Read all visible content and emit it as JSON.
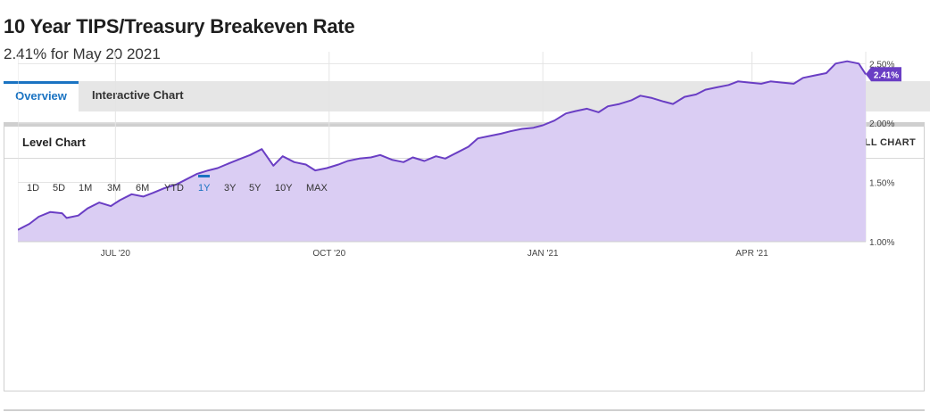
{
  "header": {
    "title": "10 Year TIPS/Treasury Breakeven Rate",
    "subtitle": "2.41% for May 20 2021"
  },
  "tabs": [
    {
      "label": "Overview",
      "active": true
    },
    {
      "label": "Interactive Chart",
      "active": false
    }
  ],
  "panel": {
    "title": "Level Chart",
    "view_full_label": "VIEW FULL CHART"
  },
  "range_buttons": [
    "1D",
    "5D",
    "1M",
    "3M",
    "6M",
    "YTD",
    "1Y",
    "3Y",
    "5Y",
    "10Y",
    "MAX"
  ],
  "active_range": "1Y",
  "colors": {
    "line": "#6a3ec4",
    "fill": "#dacdf3",
    "accent": "#1a73c2",
    "badge": "#6a3ec4"
  },
  "chart_data": {
    "type": "area",
    "series": [
      {
        "x": [
          "2020-05-20",
          "2020-05-25",
          "2020-05-29",
          "2020-06-03",
          "2020-06-08",
          "2020-06-10",
          "2020-06-15",
          "2020-06-19",
          "2020-06-24",
          "2020-06-29",
          "2020-07-03",
          "2020-07-08",
          "2020-07-13",
          "2020-07-17",
          "2020-07-22",
          "2020-07-27",
          "2020-07-31",
          "2020-08-05",
          "2020-08-10",
          "2020-08-14",
          "2020-08-19",
          "2020-08-24",
          "2020-08-28",
          "2020-09-02",
          "2020-09-07",
          "2020-09-11",
          "2020-09-16",
          "2020-09-21",
          "2020-09-25",
          "2020-09-30",
          "2020-10-05",
          "2020-10-09",
          "2020-10-14",
          "2020-10-19",
          "2020-10-23",
          "2020-10-28",
          "2020-11-02",
          "2020-11-06",
          "2020-11-11",
          "2020-11-16",
          "2020-11-20",
          "2020-11-25",
          "2020-11-30",
          "2020-12-04",
          "2020-12-09",
          "2020-12-14",
          "2020-12-18",
          "2020-12-23",
          "2020-12-28",
          "2021-01-01",
          "2021-01-06",
          "2021-01-11",
          "2021-01-15",
          "2021-01-20",
          "2021-01-25",
          "2021-01-29",
          "2021-02-03",
          "2021-02-08",
          "2021-02-12",
          "2021-02-17",
          "2021-02-22",
          "2021-02-26",
          "2021-03-03",
          "2021-03-08",
          "2021-03-12",
          "2021-03-17",
          "2021-03-22",
          "2021-03-26",
          "2021-03-31",
          "2021-04-05",
          "2021-04-09",
          "2021-04-14",
          "2021-04-19",
          "2021-04-23",
          "2021-04-28",
          "2021-05-03",
          "2021-05-07",
          "2021-05-12",
          "2021-05-17",
          "2021-05-20"
        ],
        "values": [
          1.1,
          1.15,
          1.21,
          1.25,
          1.24,
          1.2,
          1.22,
          1.28,
          1.33,
          1.3,
          1.35,
          1.4,
          1.38,
          1.41,
          1.45,
          1.48,
          1.52,
          1.57,
          1.6,
          1.62,
          1.66,
          1.7,
          1.73,
          1.78,
          1.64,
          1.72,
          1.67,
          1.65,
          1.6,
          1.62,
          1.65,
          1.68,
          1.7,
          1.71,
          1.73,
          1.69,
          1.67,
          1.71,
          1.68,
          1.72,
          1.7,
          1.75,
          1.8,
          1.87,
          1.89,
          1.91,
          1.93,
          1.95,
          1.96,
          1.98,
          2.02,
          2.08,
          2.1,
          2.12,
          2.09,
          2.14,
          2.16,
          2.19,
          2.23,
          2.21,
          2.18,
          2.16,
          2.22,
          2.24,
          2.28,
          2.3,
          2.32,
          2.35,
          2.34,
          2.33,
          2.35,
          2.34,
          2.33,
          2.38,
          2.4,
          2.42,
          2.5,
          2.52,
          2.5,
          2.41
        ]
      }
    ],
    "x_ticks": [
      "JUL '20",
      "OCT '20",
      "JAN '21",
      "APR '21"
    ],
    "y_ticks": [
      "1.00%",
      "1.50%",
      "2.00%",
      "2.50%"
    ],
    "ylim": [
      1.0,
      2.6
    ],
    "xlim": [
      "2020-05-20",
      "2021-05-20"
    ],
    "last_value_label": "2.41%",
    "grid": true
  }
}
